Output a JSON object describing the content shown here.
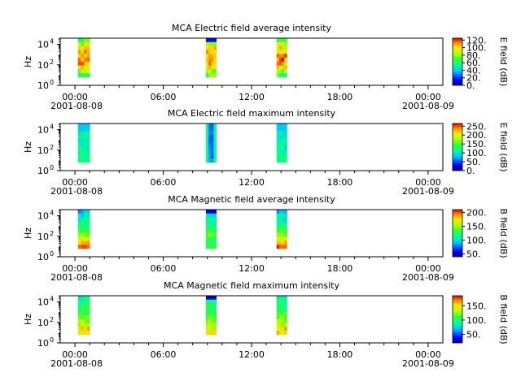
{
  "figure": {
    "type": "spectrogram-panels",
    "x_ticks": [
      "00:00",
      "06:00",
      "12:00",
      "18:00",
      "00:00"
    ],
    "x_ticks_hours": [
      0,
      6,
      12,
      18,
      24
    ],
    "x_date_start": "2001-08-08",
    "x_date_end": "2001-08-09",
    "ylabel": "Hz",
    "y_ticks": [
      {
        "base": "10",
        "exp": "0"
      },
      {
        "base": "10",
        "exp": "2"
      },
      {
        "base": "10",
        "exp": "4"
      }
    ]
  },
  "chart_data": [
    {
      "type": "heatmap",
      "title": "MCA  Electric field average intensity",
      "xlabel": "",
      "ylabel": "Hz",
      "yscale": "log",
      "ylim": [
        1,
        40000
      ],
      "xlim_hours": [
        -1,
        25
      ],
      "colorbar": {
        "label": "E field (dB)",
        "ticks": [
          "0.",
          "20.",
          "40.",
          "60.",
          "80.",
          "100.",
          "120."
        ],
        "range": [
          0,
          125
        ]
      },
      "intervals_hours": [
        [
          0.2,
          1.0
        ],
        [
          8.9,
          9.6
        ],
        [
          13.7,
          14.4
        ]
      ],
      "pattern": "avgE"
    },
    {
      "type": "heatmap",
      "title": "MCA  Electric field maximum intensity",
      "xlabel": "",
      "ylabel": "Hz",
      "yscale": "log",
      "ylim": [
        1,
        40000
      ],
      "xlim_hours": [
        -1,
        25
      ],
      "colorbar": {
        "label": "E field (dB)",
        "ticks": [
          "0.",
          "50.",
          "100.",
          "150.",
          "200.",
          "250."
        ],
        "range": [
          0,
          265
        ]
      },
      "intervals_hours": [
        [
          0.2,
          1.0
        ],
        [
          8.9,
          9.6
        ],
        [
          13.7,
          14.4
        ]
      ],
      "pattern": "maxE"
    },
    {
      "type": "heatmap",
      "title": "MCA  Magnetic field average intensity",
      "xlabel": "",
      "ylabel": "Hz",
      "yscale": "log",
      "ylim": [
        1,
        40000
      ],
      "xlim_hours": [
        -1,
        25
      ],
      "colorbar": {
        "label": "B field (dB)",
        "ticks": [
          "50.",
          "100.",
          "150.",
          "200."
        ],
        "range": [
          40,
          210
        ]
      },
      "intervals_hours": [
        [
          0.2,
          1.0
        ],
        [
          8.9,
          9.6
        ],
        [
          13.7,
          14.4
        ]
      ],
      "pattern": "avgB"
    },
    {
      "type": "heatmap",
      "title": "MCA  Magnetic field maximum intensity",
      "xlabel": "",
      "ylabel": "Hz",
      "yscale": "log",
      "ylim": [
        1,
        40000
      ],
      "xlim_hours": [
        -1,
        25
      ],
      "colorbar": {
        "label": "B field (dB)",
        "ticks": [
          "50.",
          "100.",
          "150."
        ],
        "range": [
          20,
          185
        ]
      },
      "intervals_hours": [
        [
          0.2,
          1.0
        ],
        [
          8.9,
          9.6
        ],
        [
          13.7,
          14.4
        ]
      ],
      "pattern": "maxB"
    }
  ]
}
